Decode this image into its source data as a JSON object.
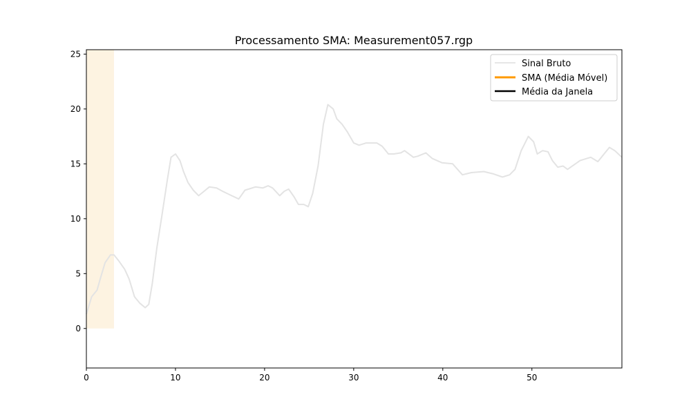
{
  "chart_data": {
    "type": "line",
    "title": "Processamento SMA: Measurement057.rgp",
    "xlabel": "",
    "ylabel": "",
    "xlim": [
      0,
      60.1
    ],
    "ylim": [
      -3.6,
      25.4
    ],
    "xticks": [
      0,
      10,
      20,
      30,
      40,
      50
    ],
    "yticks": [
      0,
      5,
      10,
      15,
      20,
      25
    ],
    "grid": false,
    "legend_position": "top-right",
    "highlight_span": {
      "x": [
        0,
        3.1
      ],
      "y": [
        0,
        25.4
      ],
      "color": "#fdf3e1"
    },
    "legend": [
      {
        "label": "Sinal Bruto",
        "color": "#dddddd"
      },
      {
        "label": "SMA (Média Móvel)",
        "color": "#ff9900"
      },
      {
        "label": "Média da Janela",
        "color": "#000000"
      }
    ],
    "series": [
      {
        "name": "Sinal Bruto",
        "color": "#e3e3e3",
        "x": [
          0,
          0.6,
          1.2,
          1.55,
          2.1,
          2.7,
          3.1,
          3.6,
          4.3,
          4.8,
          5.4,
          6.0,
          6.6,
          7.0,
          7.4,
          7.9,
          8.5,
          9.1,
          9.5,
          10.0,
          10.5,
          10.9,
          11.4,
          12.0,
          12.6,
          13.2,
          13.8,
          14.6,
          15.3,
          16.3,
          17.1,
          17.8,
          19.0,
          19.8,
          20.4,
          20.9,
          21.7,
          22.2,
          22.7,
          23.3,
          23.8,
          24.4,
          24.9,
          25.4,
          26.0,
          26.6,
          27.1,
          27.7,
          28.1,
          28.7,
          29.3,
          30.0,
          30.6,
          31.4,
          32.6,
          33.2,
          33.9,
          34.5,
          35.3,
          35.7,
          36.7,
          37.2,
          38.1,
          38.8,
          39.9,
          41.1,
          42.2,
          43.2,
          44.6,
          45.6,
          46.7,
          47.5,
          48.1,
          48.8,
          49.6,
          50.2,
          50.6,
          51.2,
          51.8,
          52.3,
          52.9,
          53.5,
          54.0,
          54.7,
          55.4,
          56.6,
          57.4,
          58.1,
          58.7,
          59.3,
          60.1
        ],
        "y": [
          1.3,
          2.9,
          3.5,
          4.5,
          6.0,
          6.7,
          6.7,
          6.2,
          5.4,
          4.5,
          2.9,
          2.3,
          1.9,
          2.2,
          4.1,
          7.3,
          10.4,
          13.6,
          15.6,
          15.9,
          15.3,
          14.3,
          13.3,
          12.6,
          12.1,
          12.5,
          12.9,
          12.8,
          12.5,
          12.1,
          11.8,
          12.6,
          12.9,
          12.8,
          13.0,
          12.8,
          12.1,
          12.5,
          12.7,
          12.0,
          11.3,
          11.3,
          11.1,
          12.3,
          14.8,
          18.6,
          20.4,
          20.0,
          19.1,
          18.6,
          17.9,
          16.9,
          16.7,
          16.9,
          16.9,
          16.6,
          15.9,
          15.9,
          16.0,
          16.2,
          15.6,
          15.7,
          16.0,
          15.5,
          15.1,
          15.0,
          14.0,
          14.2,
          14.3,
          14.1,
          13.8,
          14.0,
          14.5,
          16.2,
          17.5,
          17.0,
          15.9,
          16.2,
          16.1,
          15.3,
          14.7,
          14.8,
          14.5,
          14.9,
          15.3,
          15.6,
          15.2,
          15.9,
          16.5,
          16.2,
          15.6
        ]
      }
    ]
  }
}
